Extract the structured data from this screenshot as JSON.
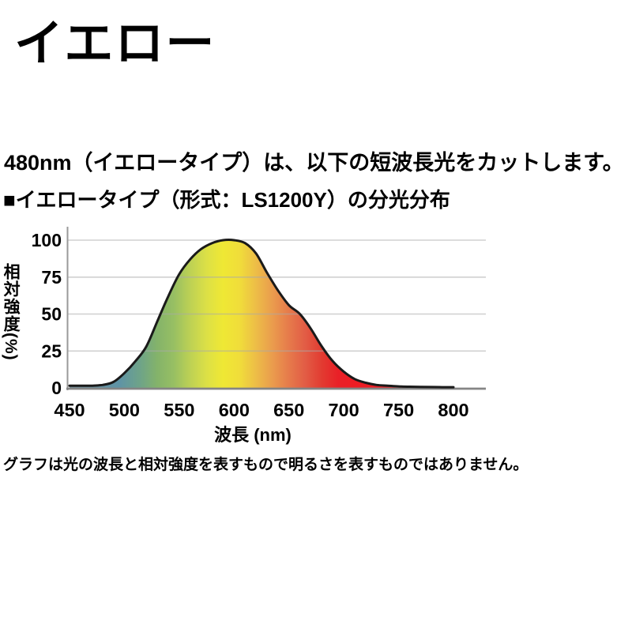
{
  "page": {
    "title": "イエロー",
    "intro": "480nm（イエロータイプ）は、以下の短波長光をカットします。",
    "section_heading": "■イエロータイプ（形式：LS1200Y）の分光分布",
    "footnote": "グラフは光の波長と相対強度を表すもので明るさを表すものではありません。"
  },
  "chart_data": {
    "type": "area",
    "title": "イエロータイプ（形式：LS1200Y）の分光分布",
    "xlabel": "波長 (nm)",
    "ylabel": "相対強度(%)",
    "xlim": [
      450,
      800
    ],
    "ylim": [
      0,
      100
    ],
    "x_ticks": [
      450,
      500,
      550,
      600,
      650,
      700,
      750,
      800
    ],
    "y_ticks": [
      0,
      25,
      50,
      75,
      100
    ],
    "grid": "horizontal gridlines at 25, 50, 75, 100",
    "legend": "none",
    "x": [
      450,
      460,
      470,
      480,
      490,
      500,
      510,
      520,
      530,
      540,
      550,
      560,
      570,
      580,
      590,
      600,
      610,
      620,
      630,
      640,
      650,
      660,
      670,
      680,
      690,
      700,
      710,
      720,
      730,
      740,
      750,
      760,
      770,
      780,
      790,
      800
    ],
    "y": [
      1.5,
      1.5,
      1.5,
      2,
      4,
      10,
      18,
      28,
      45,
      62,
      77,
      87,
      94,
      98,
      100,
      100,
      98,
      91,
      78,
      66,
      56,
      50,
      40,
      28,
      18,
      11,
      6,
      3.5,
      2,
      1.5,
      1,
      0.8,
      0.7,
      0.6,
      0.5,
      0.5
    ],
    "curve_color": "#1a1a1a",
    "grid_color": "#aaaaaa",
    "axis_color": "#9a9a9a",
    "baseline_color": "#858585",
    "fill": "visible-light spectral gradient (teal-green-yellow-orange-red)",
    "gradient_stops": [
      {
        "wl": 450,
        "color": "#74919b"
      },
      {
        "wl": 495,
        "color": "#5e93a6"
      },
      {
        "wl": 515,
        "color": "#6fa487"
      },
      {
        "wl": 530,
        "color": "#84b36a"
      },
      {
        "wl": 545,
        "color": "#97bf63"
      },
      {
        "wl": 560,
        "color": "#bdd154"
      },
      {
        "wl": 575,
        "color": "#dce046"
      },
      {
        "wl": 590,
        "color": "#efe834"
      },
      {
        "wl": 605,
        "color": "#f0dd3a"
      },
      {
        "wl": 620,
        "color": "#edbd47"
      },
      {
        "wl": 635,
        "color": "#ea9c4d"
      },
      {
        "wl": 650,
        "color": "#e67a4b"
      },
      {
        "wl": 665,
        "color": "#e25c45"
      },
      {
        "wl": 680,
        "color": "#e23b31"
      },
      {
        "wl": 695,
        "color": "#e92027"
      },
      {
        "wl": 710,
        "color": "#ed1c24"
      },
      {
        "wl": 800,
        "color": "#ed1c24"
      }
    ]
  }
}
